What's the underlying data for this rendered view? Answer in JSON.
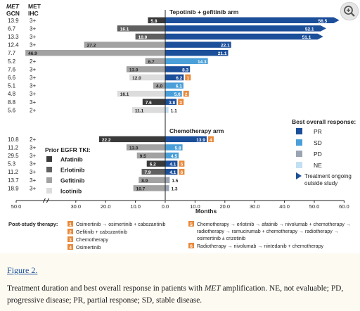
{
  "figure_link": "Figure 2.",
  "caption": {
    "before": "Treatment duration and best overall response in patients with ",
    "italic": "MET",
    "after": " amplification. NE, not evaluable; PD, progressive disease; PR, partial response; SD, stable disease."
  },
  "chart_data": {
    "type": "bar",
    "orientation": "horizontal",
    "col_headers": {
      "gcn_line1": "MET",
      "gcn_line2": "GCN",
      "ihc_line1": "MET",
      "ihc_line2": "IHC"
    },
    "xlabel": "Months",
    "xlim": [
      -50,
      60
    ],
    "x_ticks": [
      "50.0",
      "30.0",
      "20.0",
      "10.0",
      "0.0",
      "10.0",
      "20.0",
      "30.0",
      "40.0",
      "50.0",
      "60.0"
    ],
    "x_tick_values": [
      -50,
      -30,
      -20,
      -10,
      0,
      10,
      20,
      30,
      40,
      50,
      60
    ],
    "arm_labels": [
      "Tepotinib + gefitinib arm",
      "Chemotherapy arm"
    ],
    "rows": [
      {
        "arm": 0,
        "gcn": "13.9",
        "ihc": "3+",
        "prior": "Afatinib",
        "prior_val": 5.8,
        "prior_label": "5.8",
        "resp": "PR",
        "resp_val": 56.5,
        "resp_label": "56.5",
        "ongoing": true,
        "post": ""
      },
      {
        "arm": 0,
        "gcn": "6.7",
        "ihc": "3+",
        "prior": "Erlotinib",
        "prior_val": 16.1,
        "prior_label": "16.1",
        "resp": "PR",
        "resp_val": 52.1,
        "resp_label": "52.1",
        "ongoing": true,
        "post": ""
      },
      {
        "arm": 0,
        "gcn": "13.3",
        "ihc": "3+",
        "prior": "Erlotinib",
        "prior_val": 10.0,
        "prior_label": "10.0",
        "resp": "PR",
        "resp_val": 51.1,
        "resp_label": "51.1",
        "ongoing": true,
        "post": ""
      },
      {
        "arm": 0,
        "gcn": "12.4",
        "ihc": "3+",
        "prior": "Gefitinib",
        "prior_val": 27.2,
        "prior_label": "27.2",
        "resp": "PR",
        "resp_val": 22.1,
        "resp_label": "22.1",
        "ongoing": false,
        "post": ""
      },
      {
        "arm": 0,
        "gcn": "7.7",
        "ihc": "3+",
        "prior": "Gefitinib",
        "prior_val": 46.9,
        "prior_label": "46.9",
        "resp": "PR",
        "resp_val": 21.1,
        "resp_label": "21.1",
        "ongoing": false,
        "post": ""
      },
      {
        "arm": 0,
        "gcn": "5.2",
        "ihc": "2+",
        "prior": "Gefitinib",
        "prior_val": 6.7,
        "prior_label": "6.7",
        "resp": "SD",
        "resp_val": 14.3,
        "resp_label": "14.3",
        "ongoing": false,
        "post": ""
      },
      {
        "arm": 0,
        "gcn": "7.6",
        "ihc": "3+",
        "prior": "Gefitinib",
        "prior_val": 13.0,
        "prior_label": "13.0",
        "resp": "PR",
        "resp_val": 8.3,
        "resp_label": "8.3",
        "ongoing": false,
        "post": ""
      },
      {
        "arm": 0,
        "gcn": "6.6",
        "ihc": "3+",
        "prior": "Icotinib",
        "prior_val": 12.0,
        "prior_label": "12.0",
        "resp": "PR",
        "resp_val": 6.2,
        "resp_label": "6.2",
        "ongoing": false,
        "post": "1"
      },
      {
        "arm": 0,
        "gcn": "5.1",
        "ihc": "3+",
        "prior": "Gefitinib",
        "prior_val": 4.0,
        "prior_label": "4.0",
        "resp": "SD",
        "resp_val": 6.1,
        "resp_label": "6.1",
        "ongoing": false,
        "post": ""
      },
      {
        "arm": 0,
        "gcn": "4.8",
        "ihc": "3+",
        "prior": "Icotinib",
        "prior_val": 16.1,
        "prior_label": "16.1",
        "resp": "SD",
        "resp_val": 5.6,
        "resp_label": "5.6",
        "ongoing": false,
        "post": "2"
      },
      {
        "arm": 0,
        "gcn": "8.8",
        "ihc": "3+",
        "prior": "Afatinib",
        "prior_val": 7.6,
        "prior_label": "7.6",
        "resp": "PR",
        "resp_val": 3.8,
        "resp_label": "3.8",
        "ongoing": false,
        "post": "3"
      },
      {
        "arm": 0,
        "gcn": "5.6",
        "ihc": "2+",
        "prior": "Icotinib",
        "prior_val": 11.1,
        "prior_label": "11.1",
        "resp": "NE",
        "resp_val": 1.1,
        "resp_label": "1.1",
        "ongoing": false,
        "post": ""
      },
      {
        "arm": 1,
        "gcn": "10.8",
        "ihc": "2+",
        "prior": "Afatinib",
        "prior_val": 22.2,
        "prior_label": "22.2",
        "resp": "PR",
        "resp_val": 13.9,
        "resp_label": "13.9",
        "ongoing": false,
        "post": "4"
      },
      {
        "arm": 1,
        "gcn": "11.2",
        "ihc": "3+",
        "prior": "Gefitinib",
        "prior_val": 13.0,
        "prior_label": "13.0",
        "resp": "SD",
        "resp_val": 5.8,
        "resp_label": "5.8",
        "ongoing": false,
        "post": ""
      },
      {
        "arm": 1,
        "gcn": "29.5",
        "ihc": "3+",
        "prior": "Gefitinib",
        "prior_val": 9.5,
        "prior_label": "9.5",
        "resp": "SD",
        "resp_val": 4.5,
        "resp_label": "4.5",
        "ongoing": false,
        "post": ""
      },
      {
        "arm": 1,
        "gcn": "5.3",
        "ihc": "3+",
        "prior": "Afatinib",
        "prior_val": 6.2,
        "prior_label": "6.2",
        "resp": "PR",
        "resp_val": 4.1,
        "resp_label": "4.1",
        "ongoing": false,
        "post": "5"
      },
      {
        "arm": 1,
        "gcn": "11.2",
        "ihc": "3+",
        "prior": "Erlotinib",
        "prior_val": 7.9,
        "prior_label": "7.9",
        "resp": "PR",
        "resp_val": 4.1,
        "resp_label": "4.1",
        "ongoing": false,
        "post": "6"
      },
      {
        "arm": 1,
        "gcn": "13.7",
        "ihc": "3+",
        "prior": "Gefitinib",
        "prior_val": 8.9,
        "prior_label": "8.9",
        "resp": "PD",
        "resp_val": 1.5,
        "resp_label": "1.5",
        "ongoing": false,
        "post": ""
      },
      {
        "arm": 1,
        "gcn": "18.9",
        "ihc": "3+",
        "prior": "Gefitinib",
        "prior_val": 10.7,
        "prior_label": "10.7",
        "resp": "PD",
        "resp_val": 1.3,
        "resp_label": "1.3",
        "ongoing": false,
        "post": ""
      }
    ],
    "prior_legend": {
      "title": "Prior EGFR TKI:",
      "items": [
        {
          "name": "Afatinib",
          "color": "#3a3a3a"
        },
        {
          "name": "Erlotinib",
          "color": "#606060"
        },
        {
          "name": "Gefitinib",
          "color": "#a2a2a2"
        },
        {
          "name": "Icotinib",
          "color": "#dcdcdc"
        }
      ]
    },
    "response_legend": {
      "title": "Best overall response:",
      "items": [
        {
          "name": "PR",
          "color": "#1c4f9a"
        },
        {
          "name": "SD",
          "color": "#4a9fd8"
        },
        {
          "name": "PD",
          "color": "#9aa4b2"
        },
        {
          "name": "NE",
          "color": "#c2dff3"
        }
      ],
      "ongoing_label_1": "Treatment ongoing",
      "ongoing_label_2": "outside study"
    },
    "post_study": {
      "title": "Post-study therapy:",
      "badge_color": "#e8893a",
      "col1": [
        {
          "num": "1",
          "lines": [
            "Osimertinib → osimertinib + cabozantinib"
          ]
        },
        {
          "num": "2",
          "lines": [
            "Gefitinib + cabozantinib"
          ]
        },
        {
          "num": "3",
          "lines": [
            "Chemotherapy"
          ]
        },
        {
          "num": "4",
          "lines": [
            "Osimertinib"
          ]
        }
      ],
      "col2": [
        {
          "num": "5",
          "lines": [
            "Chemotherapy → erlotinib → afatinib → nivolumab + chemotherapy →",
            "radiotherapy → ramucirumab + chemotherapy → radiotherapy →",
            "osimertinib ± crizotinib"
          ]
        },
        {
          "num": "6",
          "lines": [
            "Radiotherapy → nivolumab → nintedanib + chemotherapy"
          ]
        }
      ]
    }
  }
}
